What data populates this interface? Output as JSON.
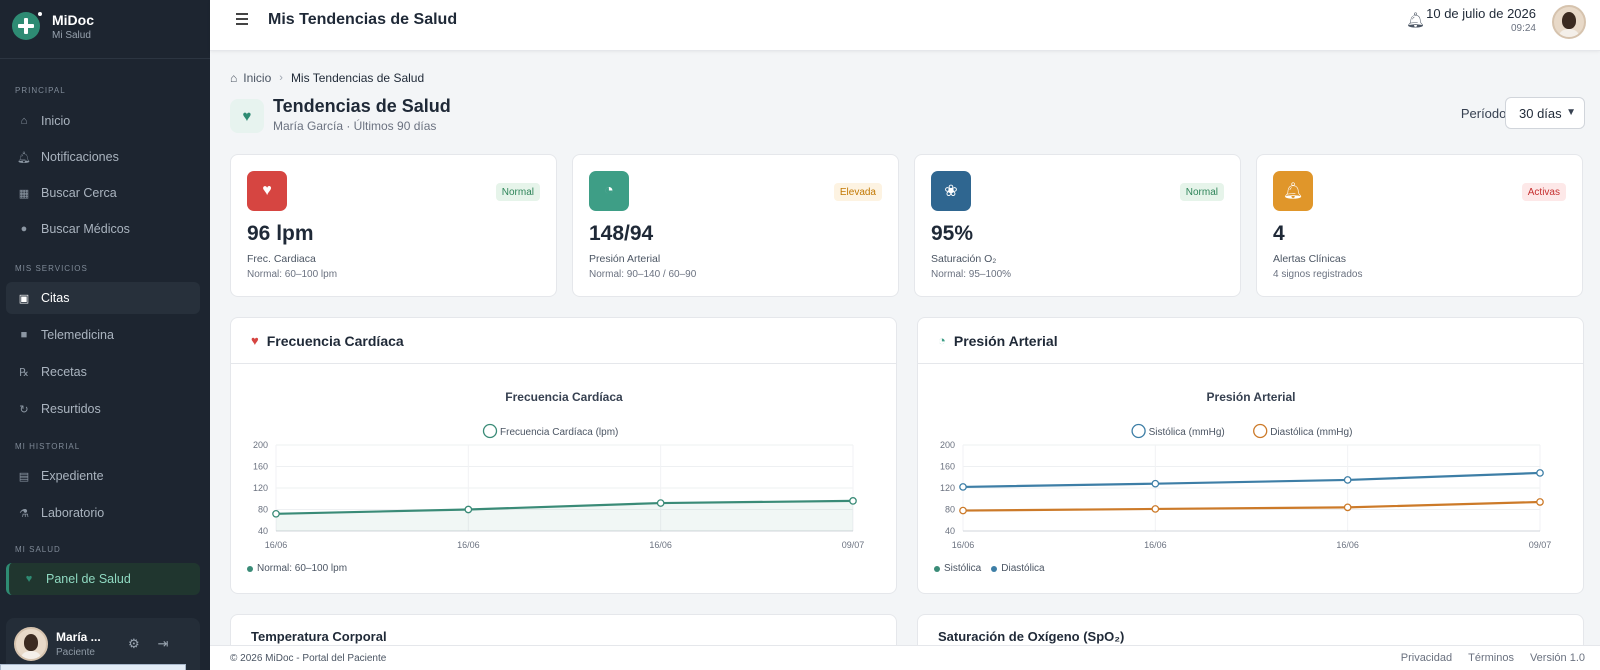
{
  "app": {
    "name": "MiDoc",
    "subtitle": "Mi Salud"
  },
  "sidebar": {
    "sections": [
      "PRINCIPAL",
      "MIS SERVICIOS",
      "MI HISTORIAL",
      "MI SALUD"
    ],
    "items": [
      {
        "label": "Inicio",
        "icon": "home-icon"
      },
      {
        "label": "Notificaciones",
        "icon": "bell-icon"
      },
      {
        "label": "Buscar Cerca",
        "icon": "map-icon"
      },
      {
        "label": "Buscar Médicos",
        "icon": "doctor-icon"
      },
      {
        "label": "Citas",
        "icon": "calendar-icon"
      },
      {
        "label": "Telemedicina",
        "icon": "video-icon"
      },
      {
        "label": "Recetas",
        "icon": "prescription-icon"
      },
      {
        "label": "Resurtidos",
        "icon": "refresh-icon"
      },
      {
        "label": "Expediente",
        "icon": "file-icon"
      },
      {
        "label": "Laboratorio",
        "icon": "flask-icon"
      },
      {
        "label": "Panel de Salud",
        "icon": "heartbeat-icon"
      }
    ],
    "user": {
      "name": "María ...",
      "role": "Paciente"
    }
  },
  "header": {
    "title": "Mis Tendencias de Salud",
    "date": "10 de julio de 2026",
    "time": "09:24"
  },
  "breadcrumb": {
    "home": "Inicio",
    "current": "Mis Tendencias de Salud"
  },
  "page": {
    "title": "Tendencias de Salud",
    "subtitle": "María García · Últimos 90 días",
    "period_label": "Período:",
    "period_value": "30 días"
  },
  "cards": [
    {
      "value": "96 lpm",
      "label": "Frec. Cardiaca",
      "normal": "Normal: 60–100 lpm",
      "badge": "Normal",
      "color": "#d64541"
    },
    {
      "value": "148/94",
      "label": "Presión Arterial",
      "normal": "Normal: 90–140 / 60–90",
      "badge": "Elevada",
      "color": "#3e9e86"
    },
    {
      "value": "95%",
      "label": "Saturación O₂",
      "normal": "Normal: 95–100%",
      "badge": "Normal",
      "color": "#2f6690"
    },
    {
      "value": "4",
      "label": "Alertas Clínicas",
      "normal": "4 signos registrados",
      "badge": "Activas",
      "color": "#e0962a"
    }
  ],
  "panels": {
    "heart": {
      "header": "Frecuencia Cardíaca",
      "footer": "Normal: 60–100 lpm"
    },
    "bp": {
      "header": "Presión Arterial",
      "footer_1": "Sistólica",
      "footer_2": "Diastólica"
    },
    "stub_1": "Temperatura Corporal",
    "stub_2": "Saturación de Oxígeno (SpO₂)"
  },
  "chart_data": [
    {
      "type": "area",
      "title": "Frecuencia Cardíaca",
      "categories": [
        "16/06",
        "16/06",
        "16/06",
        "09/07"
      ],
      "series": [
        {
          "name": "Frecuencia Cardíaca (lpm)",
          "values": [
            72,
            80,
            92,
            96
          ],
          "color": "#3a8b77"
        }
      ],
      "yticks": [
        40,
        80,
        120,
        160,
        200
      ],
      "ylim": [
        40,
        200
      ],
      "grid": true,
      "legend": "top"
    },
    {
      "type": "line",
      "title": "Presión Arterial",
      "categories": [
        "16/06",
        "16/06",
        "16/06",
        "09/07"
      ],
      "series": [
        {
          "name": "Sistólica (mmHg)",
          "values": [
            122,
            128,
            135,
            148
          ],
          "color": "#3d7ea6"
        },
        {
          "name": "Diastólica (mmHg)",
          "values": [
            78,
            81,
            84,
            94
          ],
          "color": "#cc7a29"
        }
      ],
      "yticks": [
        40,
        80,
        120,
        160,
        200
      ],
      "ylim": [
        40,
        200
      ],
      "grid": true,
      "legend": "top"
    }
  ],
  "footer": {
    "copyright": "© 2026 MiDoc - Portal del Paciente",
    "links": [
      "Privacidad",
      "Términos",
      "Versión 1.0"
    ]
  }
}
